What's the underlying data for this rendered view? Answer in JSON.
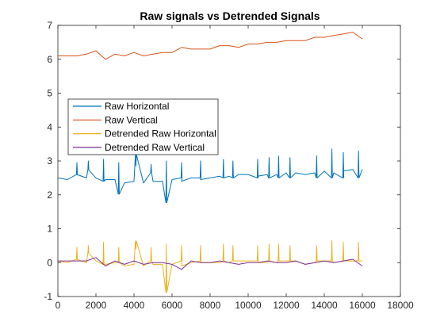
{
  "chart_data": {
    "type": "line",
    "title": "Raw signals vs Detrended Signals",
    "xlabel": "",
    "ylabel": "",
    "xlim": [
      0,
      18000
    ],
    "ylim": [
      -1,
      7
    ],
    "xticks": [
      0,
      2000,
      4000,
      6000,
      8000,
      10000,
      12000,
      14000,
      16000,
      18000
    ],
    "yticks": [
      -1,
      0,
      1,
      2,
      3,
      4,
      5,
      6,
      7
    ],
    "grid": false,
    "legend_position": "upper-left",
    "x": [
      0,
      500,
      1000,
      1500,
      2000,
      2500,
      3000,
      3500,
      4000,
      4500,
      5000,
      5500,
      6000,
      6500,
      7000,
      7500,
      8000,
      8500,
      9000,
      9500,
      10000,
      10500,
      11000,
      11500,
      12000,
      12500,
      13000,
      13500,
      14000,
      14500,
      15000,
      15500,
      16000
    ],
    "series": [
      {
        "name": "Raw Horizontal",
        "color": "#0072BD",
        "values": [
          2.5,
          2.45,
          2.6,
          2.5,
          2.5,
          2.45,
          2.45,
          2.35,
          2.4,
          2.35,
          2.4,
          2.4,
          2.45,
          2.4,
          2.5,
          2.45,
          2.5,
          2.55,
          2.55,
          2.6,
          2.6,
          2.55,
          2.6,
          2.6,
          2.65,
          2.65,
          2.6,
          2.65,
          2.7,
          2.65,
          2.7,
          2.75,
          2.75
        ],
        "spikes": [
          [
            1000,
            2.95
          ],
          [
            1600,
            3.0
          ],
          [
            2400,
            3.05
          ],
          [
            3200,
            2.95
          ],
          [
            4100,
            2.85
          ],
          [
            4900,
            2.9
          ],
          [
            5700,
            3.0
          ],
          [
            6500,
            2.95
          ],
          [
            7500,
            3.0
          ],
          [
            8700,
            3.05
          ],
          [
            9200,
            3.0
          ],
          [
            10500,
            3.05
          ],
          [
            11100,
            3.1
          ],
          [
            11600,
            3.15
          ],
          [
            12200,
            3.1
          ],
          [
            13600,
            3.15
          ],
          [
            14400,
            3.35
          ],
          [
            15000,
            3.25
          ],
          [
            15800,
            3.3
          ]
        ]
      },
      {
        "name": "Raw Vertical",
        "color": "#D95319",
        "values": [
          6.1,
          6.1,
          6.1,
          6.15,
          6.25,
          6.0,
          6.15,
          6.1,
          6.2,
          6.1,
          6.15,
          6.2,
          6.2,
          6.35,
          6.3,
          6.3,
          6.3,
          6.4,
          6.4,
          6.35,
          6.45,
          6.45,
          6.5,
          6.5,
          6.55,
          6.55,
          6.55,
          6.65,
          6.65,
          6.7,
          6.75,
          6.8,
          6.6
        ]
      },
      {
        "name": "Detrended Raw Horizontal",
        "color": "#EDB120",
        "values": [
          0.05,
          0.0,
          0.1,
          0.0,
          0.05,
          -0.05,
          0.0,
          -0.1,
          -0.05,
          -0.1,
          -0.05,
          -0.05,
          -0.05,
          -0.1,
          0.0,
          0.0,
          0.0,
          0.0,
          0.0,
          0.05,
          0.05,
          0.0,
          0.0,
          0.0,
          0.05,
          0.05,
          -0.05,
          0.0,
          0.05,
          0.0,
          0.05,
          0.05,
          0.05
        ],
        "spikes": [
          [
            1000,
            0.45
          ],
          [
            1600,
            0.5
          ],
          [
            2400,
            0.6
          ],
          [
            3200,
            0.45
          ],
          [
            4100,
            0.4
          ],
          [
            4900,
            0.45
          ],
          [
            5700,
            0.55
          ],
          [
            6500,
            0.5
          ],
          [
            7500,
            0.5
          ],
          [
            8700,
            0.55
          ],
          [
            9200,
            0.5
          ],
          [
            10500,
            0.5
          ],
          [
            11100,
            0.55
          ],
          [
            11600,
            0.55
          ],
          [
            12200,
            0.5
          ],
          [
            13600,
            0.5
          ],
          [
            14400,
            0.65
          ],
          [
            15000,
            0.6
          ],
          [
            15800,
            0.6
          ]
        ]
      },
      {
        "name": "Detrended Raw Vertical",
        "color": "#7E2F8E",
        "values": [
          0.05,
          0.05,
          0.05,
          0.05,
          0.15,
          -0.1,
          0.05,
          -0.05,
          0.05,
          -0.05,
          0.0,
          0.0,
          -0.05,
          -0.2,
          0.05,
          0.0,
          0.0,
          0.05,
          0.0,
          -0.05,
          0.0,
          0.0,
          0.05,
          0.0,
          0.0,
          0.05,
          -0.05,
          0.0,
          0.05,
          0.0,
          0.05,
          0.1,
          -0.1
        ]
      }
    ]
  }
}
